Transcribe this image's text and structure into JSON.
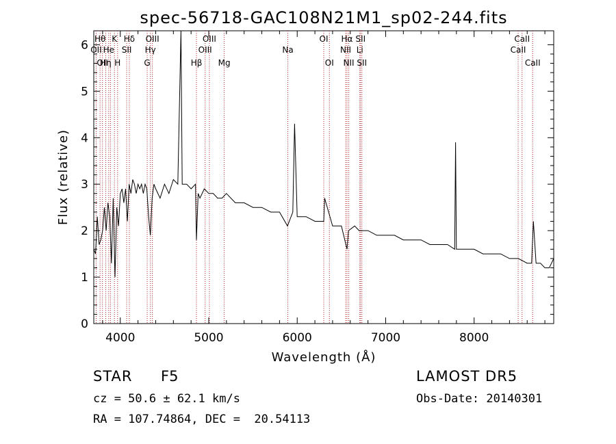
{
  "chart_data": {
    "type": "line",
    "title": "spec-56718-GAC108N21M1_sp02-244.fits",
    "xlabel": "Wavelength (Å)",
    "ylabel": "Flux (relative)",
    "xlim": [
      3700,
      8900
    ],
    "ylim": [
      0,
      6.3
    ],
    "xticks": [
      4000,
      5000,
      6000,
      7000,
      8000
    ],
    "yticks": [
      0,
      1,
      2,
      3,
      4,
      5,
      6
    ],
    "grid": false,
    "line_color": "#000000",
    "marker_color": "#b22222",
    "series": [
      {
        "x": [
          3700,
          3720,
          3740,
          3760,
          3780,
          3800,
          3820,
          3840,
          3860,
          3880,
          3900,
          3920,
          3940,
          3960,
          3980,
          4000,
          4020,
          4040,
          4060,
          4080,
          4100,
          4120,
          4140,
          4160,
          4180,
          4200,
          4220,
          4240,
          4260,
          4280,
          4300,
          4320,
          4340,
          4360,
          4380,
          4400,
          4450,
          4500,
          4550,
          4600,
          4650,
          4686,
          4700,
          4750,
          4800,
          4850,
          4861,
          4880,
          4900,
          4950,
          5000,
          5050,
          5100,
          5150,
          5200,
          5300,
          5400,
          5500,
          5600,
          5700,
          5800,
          5890,
          5950,
          5970,
          6000,
          6100,
          6200,
          6300,
          6310,
          6400,
          6500,
          6563,
          6580,
          6650,
          6700,
          6800,
          6900,
          7000,
          7100,
          7200,
          7300,
          7400,
          7500,
          7600,
          7700,
          7780,
          7790,
          7800,
          7900,
          8000,
          8100,
          8200,
          8300,
          8400,
          8500,
          8600,
          8650,
          8670,
          8700,
          8750,
          8800,
          8850,
          8900
        ],
        "y": [
          1.6,
          1.5,
          2.3,
          1.7,
          1.8,
          2.0,
          2.5,
          2.0,
          2.6,
          2.3,
          1.3,
          2.7,
          1.0,
          2.5,
          2.1,
          2.8,
          2.9,
          2.6,
          2.9,
          2.2,
          3.0,
          2.8,
          3.1,
          3.0,
          2.8,
          3.0,
          2.9,
          3.0,
          2.8,
          3.0,
          2.9,
          2.3,
          1.9,
          2.7,
          3.0,
          2.9,
          2.7,
          3.0,
          2.8,
          3.1,
          3.0,
          6.3,
          3.0,
          3.0,
          2.9,
          3.0,
          1.8,
          2.8,
          2.7,
          2.9,
          2.8,
          2.8,
          2.7,
          2.7,
          2.8,
          2.6,
          2.6,
          2.5,
          2.5,
          2.4,
          2.4,
          2.1,
          2.4,
          4.3,
          2.3,
          2.3,
          2.2,
          2.2,
          2.7,
          2.1,
          2.1,
          1.6,
          2.0,
          2.1,
          2.0,
          2.0,
          1.9,
          1.9,
          1.9,
          1.8,
          1.8,
          1.8,
          1.7,
          1.7,
          1.7,
          1.6,
          3.9,
          1.6,
          1.6,
          1.6,
          1.5,
          1.5,
          1.5,
          1.4,
          1.4,
          1.3,
          1.3,
          2.2,
          1.3,
          1.3,
          1.2,
          1.2,
          1.4
        ]
      }
    ],
    "lines": [
      {
        "wl": 3727,
        "row": 1,
        "label": "OII"
      },
      {
        "wl": 3771,
        "row": 0,
        "label": "Hθ"
      },
      {
        "wl": 3798,
        "row": 2,
        "label": "OII"
      },
      {
        "wl": 3835,
        "row": 2,
        "label": "Hη"
      },
      {
        "wl": 3869,
        "row": 1,
        "label": "He"
      },
      {
        "wl": 3889,
        "row": 1,
        "label": ""
      },
      {
        "wl": 3934,
        "row": 0,
        "label": "K"
      },
      {
        "wl": 3969,
        "row": 2,
        "label": "H"
      },
      {
        "wl": 4072,
        "row": 1,
        "label": "SII"
      },
      {
        "wl": 4102,
        "row": 0,
        "label": "Hδ"
      },
      {
        "wl": 4304,
        "row": 2,
        "label": "G"
      },
      {
        "wl": 4340,
        "row": 1,
        "label": "Hγ"
      },
      {
        "wl": 4363,
        "row": 0,
        "label": "OIII"
      },
      {
        "wl": 4861,
        "row": 2,
        "label": "Hβ"
      },
      {
        "wl": 4959,
        "row": 1,
        "label": "OIII"
      },
      {
        "wl": 5007,
        "row": 0,
        "label": "OIII"
      },
      {
        "wl": 5175,
        "row": 2,
        "label": "Mg"
      },
      {
        "wl": 5894,
        "row": 1,
        "label": "Na"
      },
      {
        "wl": 6300,
        "row": 0,
        "label": "OI"
      },
      {
        "wl": 6364,
        "row": 2,
        "label": "OI"
      },
      {
        "wl": 6548,
        "row": 1,
        "label": "NII"
      },
      {
        "wl": 6563,
        "row": 0,
        "label": "Hα"
      },
      {
        "wl": 6583,
        "row": 2,
        "label": "NII"
      },
      {
        "wl": 6708,
        "row": 1,
        "label": "Li"
      },
      {
        "wl": 6716,
        "row": 0,
        "label": "SII"
      },
      {
        "wl": 6731,
        "row": 2,
        "label": "SII"
      },
      {
        "wl": 8498,
        "row": 1,
        "label": "CaII"
      },
      {
        "wl": 8542,
        "row": 0,
        "label": "CaII"
      },
      {
        "wl": 8662,
        "row": 2,
        "label": "CaII"
      }
    ]
  },
  "footer": {
    "object_class": "STAR",
    "subclass": "F5",
    "survey": "LAMOST DR5",
    "redshift": "cz = 50.6 ± 62.1 km/s",
    "obs_date": "Obs-Date: 20140301",
    "coords": "RA = 107.74864, DEC =  20.54113"
  }
}
